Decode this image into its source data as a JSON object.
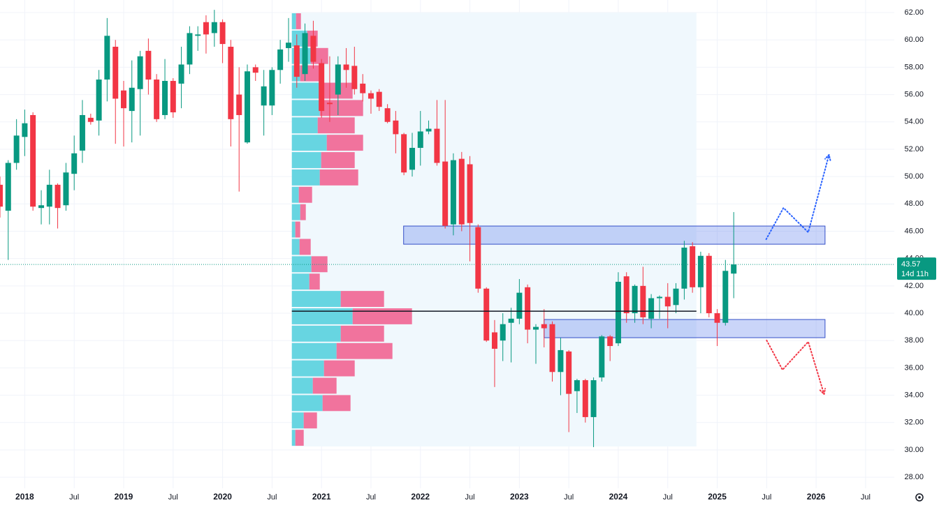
{
  "chart_data": {
    "type": "candlestick",
    "x": [
      2017.75,
      2017.833,
      2017.917,
      2018,
      2018.083,
      2018.167,
      2018.25,
      2018.333,
      2018.417,
      2018.5,
      2018.583,
      2018.667,
      2018.75,
      2018.833,
      2018.917,
      2019,
      2019.083,
      2019.167,
      2019.25,
      2019.333,
      2019.417,
      2019.5,
      2019.583,
      2019.667,
      2019.75,
      2019.833,
      2019.917,
      2020,
      2020.083,
      2020.167,
      2020.25,
      2020.333,
      2020.417,
      2020.5,
      2020.583,
      2020.667,
      2020.75,
      2020.833,
      2020.917,
      2021,
      2021.083,
      2021.167,
      2021.25,
      2021.333,
      2021.417,
      2021.5,
      2021.583,
      2021.667,
      2021.75,
      2021.833,
      2021.917,
      2022,
      2022.083,
      2022.167,
      2022.25,
      2022.333,
      2022.417,
      2022.5,
      2022.583,
      2022.667,
      2022.75,
      2022.833,
      2022.917,
      2023,
      2023.083,
      2023.167,
      2023.25,
      2023.333,
      2023.417,
      2023.5,
      2023.583,
      2023.667,
      2023.75,
      2023.833,
      2023.917,
      2024,
      2024.083,
      2024.167,
      2024.25,
      2024.333,
      2024.417,
      2024.5,
      2024.583,
      2024.667,
      2024.75,
      2024.833,
      2024.917,
      2025,
      2025.083,
      2025.167
    ],
    "open": [
      49.4,
      47.5,
      51,
      52.9,
      54.5,
      47.7,
      47.8,
      49.4,
      47.9,
      50.2,
      51.9,
      54.3,
      54.1,
      57.1,
      59.5,
      56.3,
      54.8,
      56.4,
      59.2,
      57.1,
      54.5,
      57,
      56.8,
      58.2,
      60.3,
      61.3,
      60.5,
      61.3,
      59.5,
      56,
      52.5,
      58,
      55.2,
      55.2,
      57.8,
      59.4,
      59.6,
      57.5,
      60.3,
      58.3,
      55.4,
      56,
      58.2,
      58.1,
      56.8,
      56.1,
      56.2,
      55,
      54.1,
      53.1,
      50.5,
      52.1,
      53.3,
      53.5,
      51.1,
      46.5,
      51.3,
      50.9,
      46.3,
      41.8,
      38.6,
      38,
      39.3,
      39.6,
      41.9,
      38.8,
      39.2,
      39.2,
      35.7,
      37.2,
      34.3,
      35.1,
      32.4,
      35.3,
      38.3,
      37.8,
      42.7,
      40,
      42,
      39.6,
      41.1,
      41.2,
      40.6,
      41.8,
      44.9,
      41.9,
      44.2,
      40,
      39.3,
      42.9
    ],
    "high": [
      50,
      51.2,
      54.2,
      54.9,
      54.7,
      49,
      50.5,
      49.5,
      51,
      53,
      55.6,
      54.6,
      57.8,
      61.6,
      60,
      57,
      58.5,
      59.2,
      60.1,
      57.5,
      58.6,
      57.2,
      59.5,
      61,
      61,
      61.8,
      62.2,
      61.5,
      60,
      58,
      58.2,
      58.2,
      57.8,
      58,
      60,
      61.6,
      60.4,
      61.2,
      61.4,
      58.6,
      58.8,
      58.8,
      59.4,
      59.5,
      57.5,
      56.3,
      56.4,
      55.3,
      54.8,
      53.2,
      53.2,
      54.8,
      54.1,
      55.6,
      55.6,
      51.7,
      51.8,
      51.5,
      46.5,
      41.9,
      39.5,
      40,
      40.4,
      42.5,
      42.1,
      39.2,
      40.3,
      39.4,
      38.2,
      37.3,
      35.2,
      35.2,
      35.3,
      38.4,
      38.4,
      43,
      43,
      42.1,
      43.4,
      41.4,
      41.3,
      42.2,
      42.2,
      45.3,
      45.2,
      44.5,
      44.4,
      40.3,
      43.9,
      47.4
    ],
    "low": [
      47,
      43.9,
      50.5,
      51.5,
      47.5,
      46.5,
      46.5,
      46.2,
      47.5,
      49,
      51,
      53.8,
      53,
      55.5,
      52.4,
      52.2,
      52.5,
      53,
      56,
      54,
      54.2,
      54.3,
      55,
      57.5,
      59.2,
      59,
      59.5,
      58.3,
      52.2,
      48.9,
      52.4,
      57,
      53,
      54.5,
      56.8,
      58.4,
      56.5,
      57,
      57.9,
      54.3,
      54,
      54.5,
      56.5,
      56,
      55.5,
      54.6,
      54.8,
      53.9,
      51.7,
      50.1,
      50,
      50.8,
      53.1,
      50.8,
      46.2,
      45.7,
      46,
      43.8,
      41.5,
      37.9,
      34.6,
      36.5,
      36.4,
      39.2,
      37.8,
      36.3,
      37.5,
      35,
      34,
      31.3,
      32.7,
      32,
      30.2,
      35,
      36.5,
      37.6,
      39.3,
      39.3,
      39.2,
      38.9,
      39.6,
      38.9,
      40,
      41,
      41.5,
      40,
      39.7,
      37.6,
      39.1,
      41.1
    ],
    "close": [
      47.8,
      51,
      53,
      53.9,
      47.8,
      47.9,
      49.4,
      47.7,
      50.3,
      51.7,
      54.5,
      54.0,
      57.1,
      60.3,
      55.7,
      55.0,
      56.5,
      58.8,
      57.1,
      54.2,
      57,
      54.7,
      58.2,
      60.5,
      60.4,
      60.4,
      61.3,
      59.7,
      54.2,
      54.5,
      57.7,
      57.6,
      56.6,
      57.8,
      59.3,
      59.8,
      57.3,
      60.5,
      58.4,
      54.8,
      55.3,
      58.2,
      57.8,
      56.4,
      56.1,
      55.7,
      55.1,
      54.0,
      53.1,
      50.3,
      52.1,
      53.3,
      53.5,
      51,
      46.4,
      51.2,
      46.5,
      46.6,
      41.8,
      38.0,
      37.4,
      39.2,
      39.6,
      41.5,
      38.8,
      39.0,
      38.9,
      35.7,
      37.3,
      34.1,
      35.1,
      32.4,
      35.1,
      38.3,
      37.6,
      42.3,
      40,
      42,
      39.7,
      41.1,
      41.2,
      40.5,
      41.8,
      44.8,
      41.9,
      44.2,
      40,
      39.3,
      43.1,
      43.57
    ],
    "up_color": "#089981",
    "down_color": "#f23645",
    "xlim": [
      2017.75,
      2026.79
    ],
    "ylim": [
      27.19,
      62.92
    ],
    "grid": true,
    "xticks": [
      2018,
      {
        "value": 2018.5,
        "label": "Jul"
      },
      2019,
      {
        "value": 2019.5,
        "label": "Jul"
      },
      2020,
      {
        "value": 2020.5,
        "label": "Jul"
      },
      2021,
      {
        "value": 2021.5,
        "label": "Jul"
      },
      2022,
      {
        "value": 2022.5,
        "label": "Jul"
      },
      2023,
      {
        "value": 2023.5,
        "label": "Jul"
      },
      2024,
      {
        "value": 2024.5,
        "label": "Jul"
      },
      2025,
      {
        "value": 2025.5,
        "label": "Jul"
      },
      2026,
      {
        "value": 2026.5,
        "label": "Jul"
      }
    ],
    "yticks": [
      {
        "value": 28,
        "label": "28.00"
      },
      {
        "value": 30,
        "label": "30.00"
      },
      {
        "value": 32,
        "label": "32.00"
      },
      {
        "value": 34,
        "label": "34.00"
      },
      {
        "value": 36,
        "label": "36.00"
      },
      {
        "value": 38,
        "label": "38.00"
      },
      {
        "value": 40,
        "label": "40.00"
      },
      {
        "value": 42,
        "label": "42.00"
      },
      {
        "value": 44,
        "label": "44.00"
      },
      {
        "value": 46,
        "label": "46.00"
      },
      {
        "value": 48,
        "label": "48.00"
      },
      {
        "value": 50,
        "label": "50.00"
      },
      {
        "value": 52,
        "label": "52.00"
      },
      {
        "value": 54,
        "label": "54.00"
      },
      {
        "value": 56,
        "label": "56.00"
      },
      {
        "value": 58,
        "label": "58.00"
      },
      {
        "value": 60,
        "label": "60.00"
      },
      {
        "value": 62,
        "label": "62.00"
      }
    ],
    "last_price": {
      "value": 43.57,
      "countdown": "14d 11h",
      "color": "#089981"
    },
    "volume_profile": {
      "range": [
        2020.7,
        2024.79
      ],
      "bins": [
        30.25,
        31.52,
        32.79,
        34.06,
        35.33,
        36.6,
        37.87,
        39.14,
        40.41,
        41.68,
        42.95,
        44.22,
        45.49,
        46.76,
        48.03,
        49.3,
        50.57,
        51.84,
        53.11,
        54.38,
        55.65,
        56.92,
        58.19,
        59.46,
        60.73,
        62.0
      ],
      "up_volume": [
        5,
        17,
        44,
        30,
        46,
        64,
        70,
        87,
        70,
        25,
        28,
        11,
        5,
        12,
        10,
        40,
        42,
        50,
        37,
        40,
        42,
        12,
        27,
        22,
        6
      ],
      "down_volume": [
        12,
        19,
        40,
        34,
        44,
        80,
        62,
        85,
        62,
        15,
        23,
        16,
        7,
        8,
        19,
        55,
        48,
        52,
        53,
        62,
        45,
        30,
        25,
        15,
        7
      ],
      "poc": 40.15,
      "up_color": "#5fd3df",
      "down_color": "#f06b98",
      "background": "#f0f8fd"
    },
    "zones": [
      {
        "start": 2021.83,
        "end": 2026.09,
        "top": 46.38,
        "bottom": 45.05
      },
      {
        "start": 2023.25,
        "end": 2026.09,
        "top": 39.54,
        "bottom": 38.21
      }
    ],
    "projections": [
      {
        "color": "#2962ff",
        "x": [
          2025.495,
          2025.67,
          2025.92,
          2026.13
        ],
        "y": [
          45.41,
          47.71,
          45.92,
          51.59
        ]
      },
      {
        "color": "#f23645",
        "x": [
          2025.5,
          2025.66,
          2025.92,
          2026.08
        ],
        "y": [
          38.01,
          35.86,
          37.91,
          34.08
        ]
      }
    ]
  }
}
